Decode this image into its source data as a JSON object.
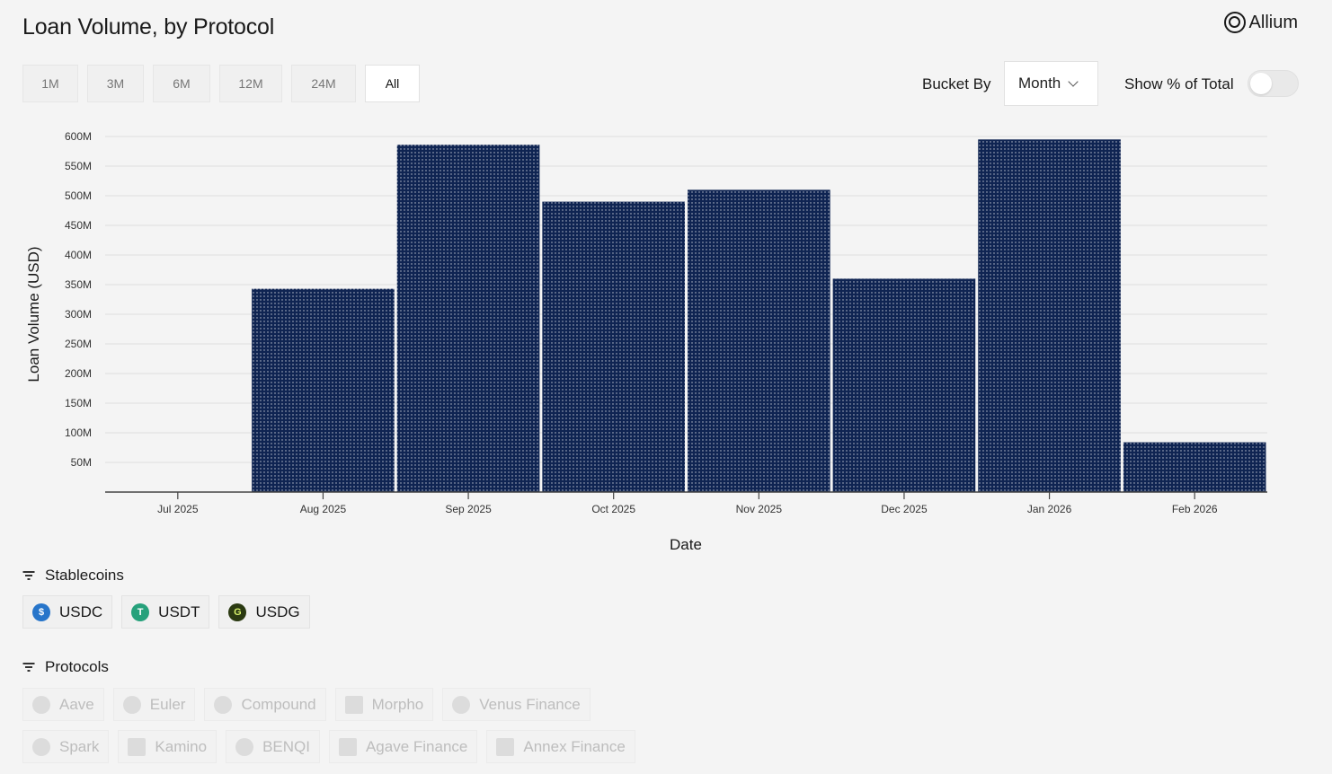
{
  "header": {
    "title": "Loan Volume, by Protocol",
    "brand": "Allium"
  },
  "range_buttons": [
    {
      "label": "1M",
      "active": false
    },
    {
      "label": "3M",
      "active": false
    },
    {
      "label": "6M",
      "active": false
    },
    {
      "label": "12M",
      "active": false
    },
    {
      "label": "24M",
      "active": false
    },
    {
      "label": "All",
      "active": true
    }
  ],
  "controls": {
    "bucket_label": "Bucket By",
    "bucket_value": "Month",
    "pct_label": "Show % of Total",
    "pct_enabled": false
  },
  "chart_data": {
    "type": "bar",
    "categories": [
      "Jul 2025",
      "Aug 2025",
      "Sep 2025",
      "Oct 2025",
      "Nov 2025",
      "Dec 2025",
      "Jan 2026",
      "Feb 2026"
    ],
    "series": [
      {
        "values": [
          0,
          343,
          586,
          490,
          510,
          360,
          595,
          84
        ]
      }
    ],
    "unit": "M",
    "xlabel": "Date",
    "ylabel": "Loan Volume (USD)",
    "ylim": [
      0,
      600
    ],
    "yticks": [
      50,
      100,
      150,
      200,
      250,
      300,
      350,
      400,
      450,
      500,
      550,
      600
    ],
    "ytick_labels": [
      "50M",
      "100M",
      "150M",
      "200M",
      "250M",
      "300M",
      "350M",
      "400M",
      "450M",
      "500M",
      "550M",
      "600M"
    ],
    "grid": true,
    "bar_color": "#0f2452"
  },
  "stablecoins": {
    "header": "Stablecoins",
    "items": [
      {
        "label": "USDC",
        "icon": "usdc-icon",
        "color": "#2775ca",
        "glyph": "$"
      },
      {
        "label": "USDT",
        "icon": "usdt-icon",
        "color": "#26a17b",
        "glyph": "T"
      },
      {
        "label": "USDG",
        "icon": "usdg-icon",
        "color": "#2b3a12",
        "glyph": "G"
      }
    ]
  },
  "protocols": {
    "header": "Protocols",
    "rows": [
      [
        {
          "label": "Aave",
          "icon": "aave-icon"
        },
        {
          "label": "Euler",
          "icon": "euler-icon"
        },
        {
          "label": "Compound",
          "icon": "compound-icon"
        },
        {
          "label": "Morpho",
          "icon": "morpho-icon"
        },
        {
          "label": "Venus Finance",
          "icon": "venus-icon"
        }
      ],
      [
        {
          "label": "Spark",
          "icon": "spark-icon"
        },
        {
          "label": "Kamino",
          "icon": "kamino-icon"
        },
        {
          "label": "BENQI",
          "icon": "benqi-icon"
        },
        {
          "label": "Agave Finance",
          "icon": "agave-icon"
        },
        {
          "label": "Annex Finance",
          "icon": "annex-icon"
        }
      ]
    ]
  }
}
